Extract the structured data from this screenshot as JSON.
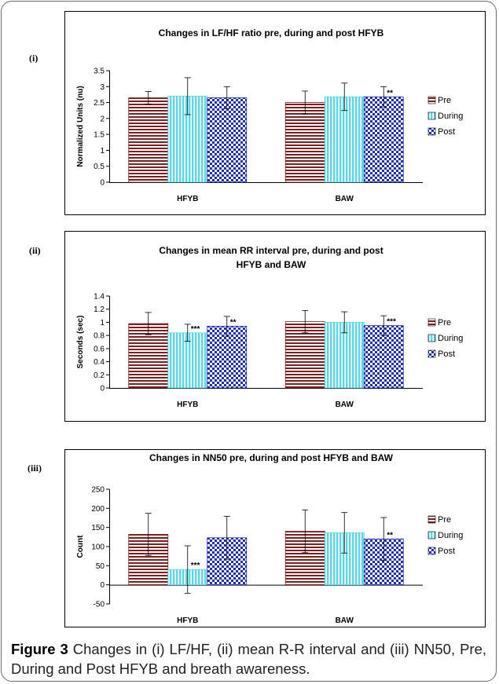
{
  "colors": {
    "pre": "#7b1f1f",
    "during": "#5ad7e6",
    "post": "#1f2fb4"
  },
  "chart_data": [
    {
      "type": "bar",
      "panel_tag": "(i)",
      "title": [
        "Changes in LF/HF ratio pre, during and post HFYB"
      ],
      "xlabel": "",
      "ylabel": "Normalized Units (nu)",
      "categories": [
        "HFYB",
        "BAW"
      ],
      "ylim": [
        0,
        3.5
      ],
      "yticks": [
        "0",
        "0.5",
        "1",
        "1.5",
        "2",
        "2.5",
        "3",
        "3.5"
      ],
      "legend": [
        "Pre",
        "During",
        "Post"
      ],
      "legend_position": "right",
      "grid": false,
      "series": [
        {
          "name": "Pre",
          "values": [
            2.65,
            2.5
          ],
          "errors": [
            0.2,
            0.36
          ],
          "sig": [
            "",
            ""
          ]
        },
        {
          "name": "During",
          "values": [
            2.7,
            2.68
          ],
          "errors": [
            0.58,
            0.43
          ],
          "sig": [
            "",
            ""
          ]
        },
        {
          "name": "Post",
          "values": [
            2.65,
            2.68
          ],
          "errors": [
            0.35,
            0.32
          ],
          "sig": [
            "",
            "**"
          ]
        }
      ]
    },
    {
      "type": "bar",
      "panel_tag": "(ii)",
      "title": [
        "Changes in mean RR interval pre, during and post",
        "HFYB and BAW"
      ],
      "xlabel": "",
      "ylabel": "Seconds (sec)",
      "categories": [
        "HFYB",
        "BAW"
      ],
      "ylim": [
        0,
        1.4
      ],
      "yticks": [
        "0",
        "0.2",
        "0.4",
        "0.6",
        "0.8",
        "1",
        "1.2",
        "1.4"
      ],
      "legend": [
        "Pre",
        "During",
        "Post"
      ],
      "legend_position": "right",
      "grid": false,
      "series": [
        {
          "name": "Pre",
          "values": [
            0.98,
            1.01
          ],
          "errors": [
            0.17,
            0.17
          ],
          "sig": [
            "",
            ""
          ]
        },
        {
          "name": "During",
          "values": [
            0.84,
            1.0
          ],
          "errors": [
            0.13,
            0.16
          ],
          "sig": [
            "***",
            ""
          ]
        },
        {
          "name": "Post",
          "values": [
            0.94,
            0.95
          ],
          "errors": [
            0.15,
            0.15
          ],
          "sig": [
            "**",
            "***"
          ]
        }
      ]
    },
    {
      "type": "bar",
      "panel_tag": "(iii)",
      "title": [
        "Changes in NN50 pre, during and post HFYB and BAW"
      ],
      "xlabel": "",
      "ylabel": "Count",
      "categories": [
        "HFYB",
        "BAW"
      ],
      "ylim": [
        -50,
        250
      ],
      "yticks": [
        "-50",
        "0",
        "50",
        "100",
        "150",
        "200",
        "250"
      ],
      "legend": [
        "Pre",
        "During",
        "Post"
      ],
      "legend_position": "right",
      "grid": false,
      "series": [
        {
          "name": "Pre",
          "values": [
            132,
            140
          ],
          "errors": [
            55,
            56
          ],
          "sig": [
            "",
            ""
          ]
        },
        {
          "name": "During",
          "values": [
            40,
            136
          ],
          "errors": [
            62,
            53
          ],
          "sig": [
            "***",
            ""
          ]
        },
        {
          "name": "Post",
          "values": [
            123,
            120
          ],
          "errors": [
            56,
            56
          ],
          "sig": [
            "",
            "**"
          ]
        }
      ]
    }
  ],
  "caption": {
    "label": "Figure 3",
    "text": " Changes in (i) LF/HF, (ii) mean R-R interval and (iii) NN50, Pre, During and Post HFYB and breath awareness."
  }
}
